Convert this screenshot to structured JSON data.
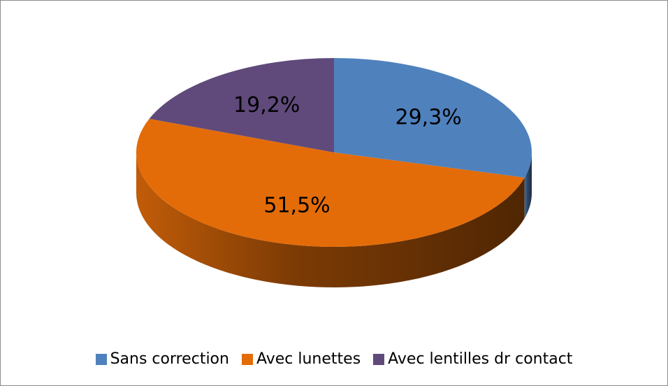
{
  "chart_data": {
    "type": "pie",
    "categories": [
      "Sans correction",
      "Avec lunettes",
      "Avec lentilles dr contact"
    ],
    "values": [
      29.3,
      51.5,
      19.2
    ],
    "value_labels": [
      "29,3%",
      "51,5%",
      "19,2%"
    ],
    "colors": [
      "#4f81bd",
      "#e36c09",
      "#604a7b"
    ],
    "legend": "bottom"
  }
}
